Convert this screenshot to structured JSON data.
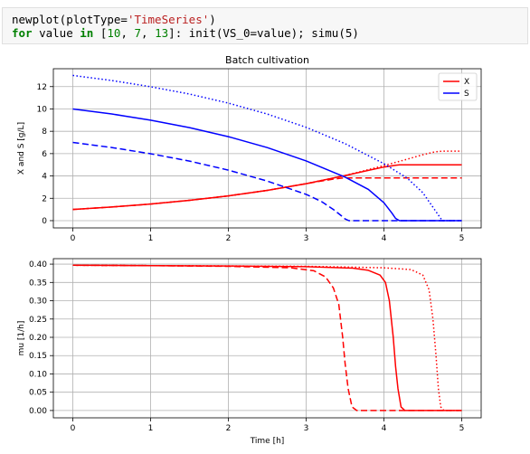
{
  "code_cell": {
    "line1": {
      "fn": "newplot(plotType=",
      "str": "'TimeSeries'",
      "close": ")"
    },
    "line2": {
      "kw_for": "for",
      "var": " value ",
      "kw_in": "in",
      "list_open": " [",
      "n1": "10",
      "sep1": ", ",
      "n2": "7",
      "sep2": ", ",
      "n3": "13",
      "rest": "]: init(VS_0=value); simu(5)"
    }
  },
  "colors": {
    "x_series": "#ff0000",
    "s_series": "#0000ff",
    "grid": "#b0b0b0"
  },
  "chart_data": [
    {
      "type": "line",
      "title": "Batch cultivation",
      "xlabel": "",
      "ylabel": "X and S [g/L]",
      "xlim": [
        -0.25,
        5.25
      ],
      "ylim": [
        -0.65,
        13.6
      ],
      "xticks": [
        0,
        1,
        2,
        3,
        4,
        5
      ],
      "yticks": [
        0,
        2,
        4,
        6,
        8,
        10,
        12
      ],
      "grid": true,
      "legend_position": "top-right",
      "legend": [
        {
          "label": "X",
          "color": "#ff0000"
        },
        {
          "label": "S",
          "color": "#0000ff"
        }
      ],
      "series": [
        {
          "var": "X",
          "color": "#ff0000",
          "dash": "solid",
          "points": [
            [
              0,
              1.0
            ],
            [
              0.5,
              1.22
            ],
            [
              1,
              1.49
            ],
            [
              1.5,
              1.82
            ],
            [
              2,
              2.22
            ],
            [
              2.5,
              2.71
            ],
            [
              3,
              3.31
            ],
            [
              3.5,
              4.04
            ],
            [
              3.8,
              4.5
            ],
            [
              4.0,
              4.8
            ],
            [
              4.15,
              4.95
            ],
            [
              4.2,
              5.0
            ],
            [
              5,
              5.0
            ]
          ]
        },
        {
          "var": "X",
          "color": "#ff0000",
          "dash": "dashed",
          "points": [
            [
              0,
              1.0
            ],
            [
              0.5,
              1.22
            ],
            [
              1,
              1.49
            ],
            [
              1.5,
              1.82
            ],
            [
              2,
              2.22
            ],
            [
              2.5,
              2.71
            ],
            [
              3,
              3.31
            ],
            [
              3.2,
              3.55
            ],
            [
              3.35,
              3.72
            ],
            [
              3.45,
              3.8
            ],
            [
              3.55,
              3.83
            ],
            [
              5,
              3.83
            ]
          ]
        },
        {
          "var": "X",
          "color": "#ff0000",
          "dash": "dotted",
          "points": [
            [
              0,
              1.0
            ],
            [
              0.5,
              1.22
            ],
            [
              1,
              1.49
            ],
            [
              1.5,
              1.82
            ],
            [
              2,
              2.22
            ],
            [
              2.5,
              2.71
            ],
            [
              3,
              3.31
            ],
            [
              3.5,
              4.04
            ],
            [
              4,
              4.93
            ],
            [
              4.3,
              5.5
            ],
            [
              4.5,
              5.9
            ],
            [
              4.65,
              6.15
            ],
            [
              4.75,
              6.22
            ],
            [
              5,
              6.22
            ]
          ]
        },
        {
          "var": "S",
          "color": "#0000ff",
          "dash": "solid",
          "points": [
            [
              0,
              10.0
            ],
            [
              0.5,
              9.55
            ],
            [
              1,
              8.99
            ],
            [
              1.5,
              8.33
            ],
            [
              2,
              7.52
            ],
            [
              2.5,
              6.54
            ],
            [
              3,
              5.35
            ],
            [
              3.5,
              3.9
            ],
            [
              3.8,
              2.8
            ],
            [
              4.0,
              1.6
            ],
            [
              4.1,
              0.7
            ],
            [
              4.15,
              0.2
            ],
            [
              4.2,
              0.0
            ],
            [
              5,
              0.0
            ]
          ]
        },
        {
          "var": "S",
          "color": "#0000ff",
          "dash": "dashed",
          "points": [
            [
              0,
              7.0
            ],
            [
              0.5,
              6.55
            ],
            [
              1,
              5.99
            ],
            [
              1.5,
              5.33
            ],
            [
              2,
              4.52
            ],
            [
              2.5,
              3.54
            ],
            [
              3,
              2.35
            ],
            [
              3.2,
              1.7
            ],
            [
              3.35,
              1.0
            ],
            [
              3.45,
              0.45
            ],
            [
              3.5,
              0.15
            ],
            [
              3.55,
              0.0
            ],
            [
              5,
              0.0
            ]
          ]
        },
        {
          "var": "S",
          "color": "#0000ff",
          "dash": "dotted",
          "points": [
            [
              0,
              13.0
            ],
            [
              0.5,
              12.55
            ],
            [
              1,
              11.99
            ],
            [
              1.5,
              11.33
            ],
            [
              2,
              10.52
            ],
            [
              2.5,
              9.54
            ],
            [
              3,
              8.35
            ],
            [
              3.5,
              6.9
            ],
            [
              4,
              5.1
            ],
            [
              4.3,
              3.8
            ],
            [
              4.5,
              2.5
            ],
            [
              4.6,
              1.5
            ],
            [
              4.7,
              0.5
            ],
            [
              4.75,
              0.0
            ],
            [
              5,
              0.0
            ]
          ]
        }
      ]
    },
    {
      "type": "line",
      "title": "",
      "xlabel": "Time [h]",
      "ylabel": "mu [1/h]",
      "xlim": [
        -0.25,
        5.25
      ],
      "ylim": [
        -0.02,
        0.415
      ],
      "xticks": [
        0,
        1,
        2,
        3,
        4,
        5
      ],
      "yticks": [
        0.0,
        0.05,
        0.1,
        0.15,
        0.2,
        0.25,
        0.3,
        0.35,
        0.4
      ],
      "grid": true,
      "series": [
        {
          "var": "mu",
          "color": "#ff0000",
          "dash": "solid",
          "points": [
            [
              0,
              0.397
            ],
            [
              1,
              0.396
            ],
            [
              2,
              0.395
            ],
            [
              3,
              0.393
            ],
            [
              3.6,
              0.389
            ],
            [
              3.8,
              0.383
            ],
            [
              3.95,
              0.37
            ],
            [
              4.02,
              0.35
            ],
            [
              4.07,
              0.3
            ],
            [
              4.12,
              0.2
            ],
            [
              4.15,
              0.12
            ],
            [
              4.18,
              0.06
            ],
            [
              4.22,
              0.01
            ],
            [
              4.27,
              0.0
            ],
            [
              5,
              0.0
            ]
          ]
        },
        {
          "var": "mu",
          "color": "#ff0000",
          "dash": "dashed",
          "points": [
            [
              0,
              0.397
            ],
            [
              1,
              0.396
            ],
            [
              2,
              0.394
            ],
            [
              2.8,
              0.39
            ],
            [
              3.1,
              0.382
            ],
            [
              3.25,
              0.365
            ],
            [
              3.35,
              0.335
            ],
            [
              3.42,
              0.29
            ],
            [
              3.47,
              0.2
            ],
            [
              3.5,
              0.13
            ],
            [
              3.54,
              0.06
            ],
            [
              3.59,
              0.01
            ],
            [
              3.65,
              0.0
            ],
            [
              5,
              0.0
            ]
          ]
        },
        {
          "var": "mu",
          "color": "#ff0000",
          "dash": "dotted",
          "points": [
            [
              0,
              0.397
            ],
            [
              1,
              0.396
            ],
            [
              2,
              0.395
            ],
            [
              3,
              0.394
            ],
            [
              4,
              0.39
            ],
            [
              4.35,
              0.385
            ],
            [
              4.5,
              0.37
            ],
            [
              4.58,
              0.33
            ],
            [
              4.63,
              0.25
            ],
            [
              4.67,
              0.15
            ],
            [
              4.7,
              0.06
            ],
            [
              4.73,
              0.01
            ],
            [
              4.77,
              0.0
            ],
            [
              5,
              0.0
            ]
          ]
        }
      ]
    }
  ]
}
